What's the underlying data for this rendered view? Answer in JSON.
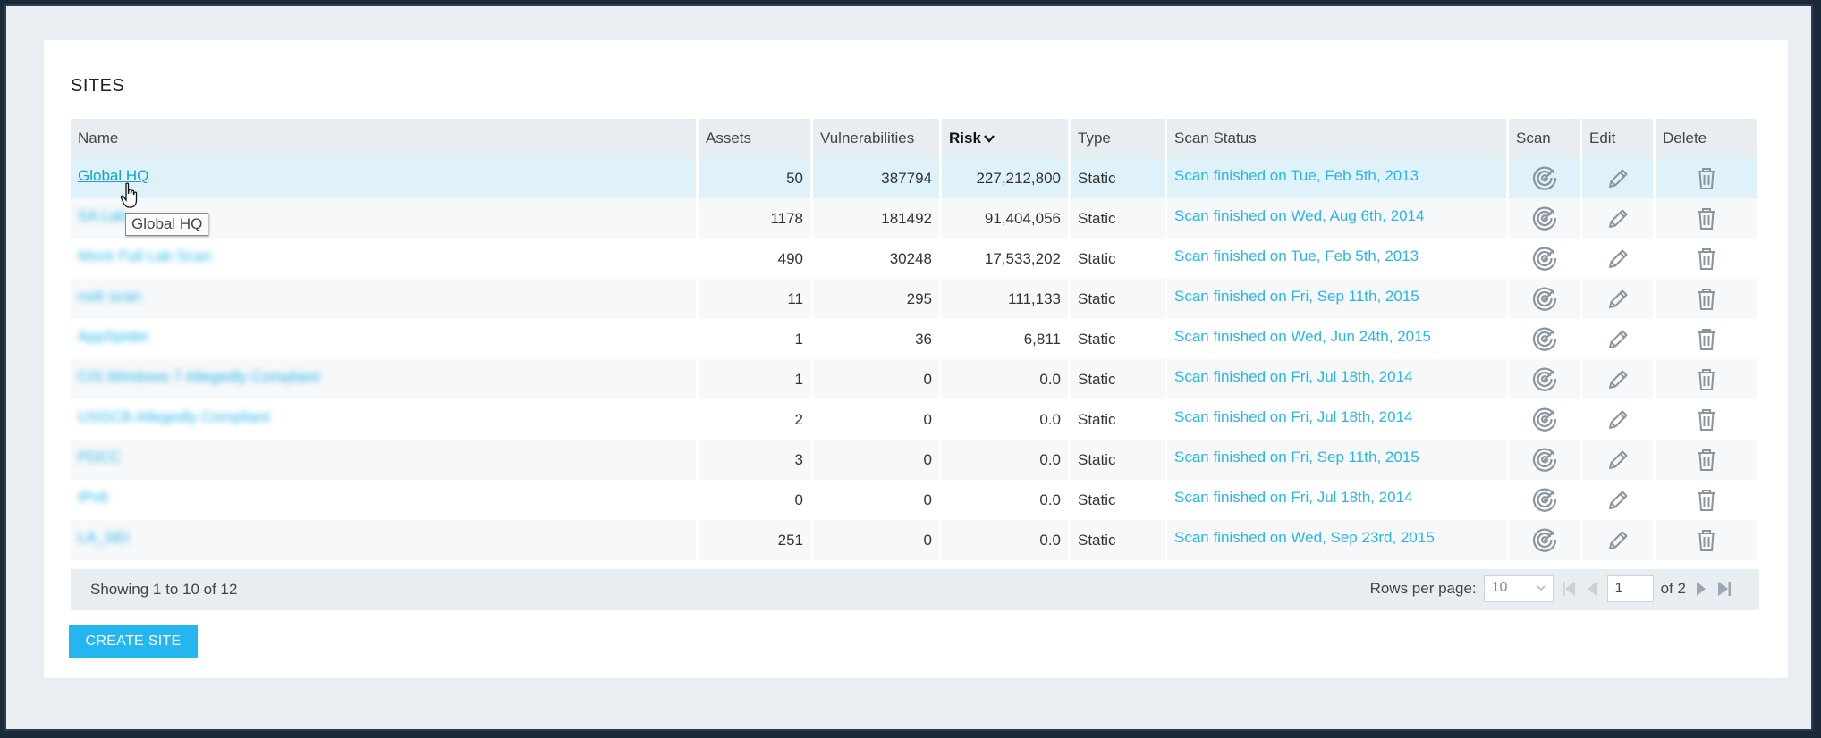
{
  "panel": {
    "title": "SITES"
  },
  "columns": [
    {
      "key": "name",
      "label": "Name"
    },
    {
      "key": "assets",
      "label": "Assets"
    },
    {
      "key": "vulnerabilities",
      "label": "Vulnerabilities"
    },
    {
      "key": "risk",
      "label": "Risk",
      "sorted": "desc"
    },
    {
      "key": "type",
      "label": "Type"
    },
    {
      "key": "scan_status",
      "label": "Scan Status"
    },
    {
      "key": "scan",
      "label": "Scan"
    },
    {
      "key": "edit",
      "label": "Edit"
    },
    {
      "key": "delete",
      "label": "Delete"
    }
  ],
  "rows": [
    {
      "name": "Global HQ",
      "assets": "50",
      "vulnerabilities": "387794",
      "risk": "227,212,800",
      "type": "Static",
      "scan_status": "Scan finished on Tue, Feb 5th, 2013"
    },
    {
      "name": "SA Lab",
      "assets": "1178",
      "vulnerabilities": "181492",
      "risk": "91,404,056",
      "type": "Static",
      "scan_status": "Scan finished on Wed, Aug 6th, 2014"
    },
    {
      "name": "Mock Full Lab Scan",
      "assets": "490",
      "vulnerabilities": "30248",
      "risk": "17,533,202",
      "type": "Static",
      "scan_status": "Scan finished on Tue, Feb 5th, 2013"
    },
    {
      "name": "rudr scan",
      "assets": "11",
      "vulnerabilities": "295",
      "risk": "111,133",
      "type": "Static",
      "scan_status": "Scan finished on Fri, Sep 11th, 2015"
    },
    {
      "name": "AppSpider",
      "assets": "1",
      "vulnerabilities": "36",
      "risk": "6,811",
      "type": "Static",
      "scan_status": "Scan finished on Wed, Jun 24th, 2015"
    },
    {
      "name": "CIS Windows 7 Allegedly Compliant",
      "assets": "1",
      "vulnerabilities": "0",
      "risk": "0.0",
      "type": "Static",
      "scan_status": "Scan finished on Fri, Jul 18th, 2014"
    },
    {
      "name": "USGCB Allegedly Compliant",
      "assets": "2",
      "vulnerabilities": "0",
      "risk": "0.0",
      "type": "Static",
      "scan_status": "Scan finished on Fri, Jul 18th, 2014"
    },
    {
      "name": "PDCC",
      "assets": "3",
      "vulnerabilities": "0",
      "risk": "0.0",
      "type": "Static",
      "scan_status": "Scan finished on Fri, Sep 11th, 2015"
    },
    {
      "name": "IPv6",
      "assets": "0",
      "vulnerabilities": "0",
      "risk": "0.0",
      "type": "Static",
      "scan_status": "Scan finished on Fri, Jul 18th, 2014"
    },
    {
      "name": "LA_SEI",
      "assets": "251",
      "vulnerabilities": "0",
      "risk": "0.0",
      "type": "Static",
      "scan_status": "Scan finished on Wed, Sep 23rd, 2015"
    }
  ],
  "footer": {
    "showing": "Showing 1 to 10 of 12",
    "rows_per_page_label": "Rows per page:",
    "rows_per_page_value": "10",
    "page_value": "1",
    "of_pages": "of 2"
  },
  "tooltip": "Global HQ",
  "create_button": "CREATE SITE",
  "icons": {
    "scan": "scan-target-icon",
    "edit": "pencil-icon",
    "delete": "trash-icon"
  },
  "colors": {
    "accent": "#24b6ef",
    "link": "#29b6e6",
    "header_bg": "#e8edf1",
    "hover_row": "#dff2fa"
  }
}
